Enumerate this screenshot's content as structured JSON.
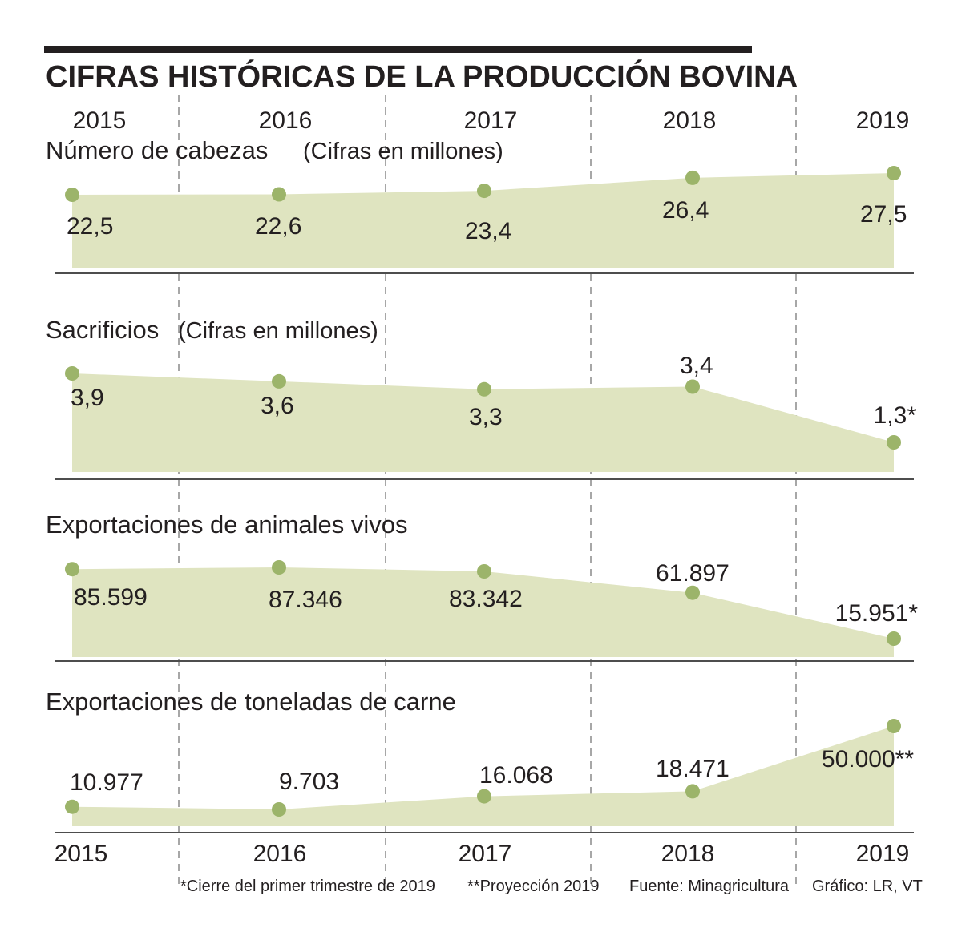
{
  "title": "CIFRAS HISTÓRICAS DE LA PRODUCCIÓN BOVINA",
  "years": [
    "2015",
    "2016",
    "2017",
    "2018",
    "2019"
  ],
  "colors": {
    "fill": "#dfe4c0",
    "marker": "#9cb46a",
    "text": "#231f20",
    "divider": "#8a8a8a"
  },
  "footnotes": {
    "note1": "*Cierre del primer trimestre de 2019",
    "note2": "**Proyección 2019",
    "source": "Fuente: Minagricultura",
    "credit": "Gráfico: LR, VT"
  },
  "chart_data": [
    {
      "type": "area",
      "title": "Número de cabezas",
      "unit": "(Cifras en millones)",
      "x": [
        "2015",
        "2016",
        "2017",
        "2018",
        "2019"
      ],
      "values": [
        22.5,
        22.6,
        23.4,
        26.4,
        27.5
      ],
      "labels": [
        "22,5",
        "22,6",
        "23,4",
        "26,4",
        "27,5"
      ]
    },
    {
      "type": "area",
      "title": "Sacrificios",
      "unit": "(Cifras en millones)",
      "x": [
        "2015",
        "2016",
        "2017",
        "2018",
        "2019"
      ],
      "values": [
        3.9,
        3.6,
        3.3,
        3.4,
        1.3
      ],
      "labels": [
        "3,9",
        "3,6",
        "3,3",
        "3,4",
        "1,3*"
      ]
    },
    {
      "type": "area",
      "title": "Exportaciones de animales vivos",
      "unit": "",
      "x": [
        "2015",
        "2016",
        "2017",
        "2018",
        "2019"
      ],
      "values": [
        85599,
        87346,
        83342,
        61897,
        15951
      ],
      "labels": [
        "85.599",
        "87.346",
        "83.342",
        "61.897",
        "15.951*"
      ]
    },
    {
      "type": "area",
      "title": "Exportaciones de toneladas de carne",
      "unit": "",
      "x": [
        "2015",
        "2016",
        "2017",
        "2018",
        "2019"
      ],
      "values": [
        10977,
        9703,
        16068,
        18471,
        50000
      ],
      "labels": [
        "10.977",
        "9.703",
        "16.068",
        "18.471",
        "50.000**"
      ]
    }
  ]
}
